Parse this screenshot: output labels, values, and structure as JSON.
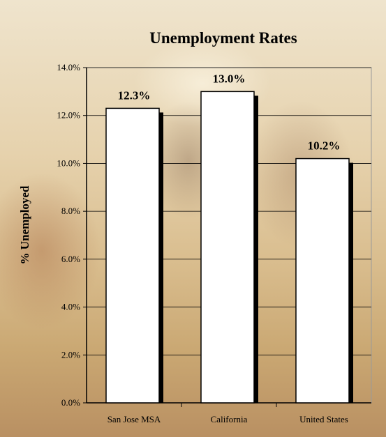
{
  "chart_data": {
    "type": "bar",
    "title": "Unemployment Rates",
    "ylabel": "% Unemployed",
    "xlabel": "",
    "categories": [
      "San Jose MSA",
      "California",
      "United States"
    ],
    "values": [
      12.3,
      13.0,
      10.2
    ],
    "value_labels": [
      "12.3%",
      "13.0%",
      "10.2%"
    ],
    "ylim": [
      0,
      14
    ],
    "yticks": [
      0,
      2,
      4,
      6,
      8,
      10,
      12,
      14
    ],
    "ytick_labels": [
      "0.0%",
      "2.0%",
      "4.0%",
      "6.0%",
      "8.0%",
      "10.0%",
      "12.0%",
      "14.0%"
    ],
    "grid": true,
    "legend": false,
    "colors": {
      "bar_fill": "#ffffff",
      "bar_stroke": "#000000",
      "bar_shadow": "#000000",
      "axis": "#000000",
      "grid": "#000000",
      "text": "#000000"
    }
  }
}
